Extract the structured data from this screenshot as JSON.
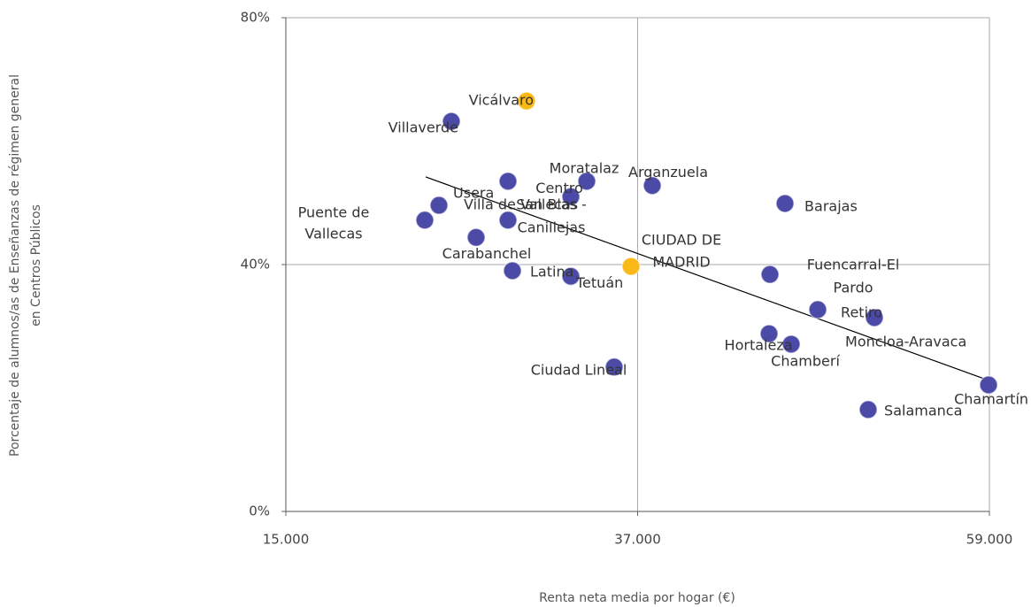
{
  "chart_data": {
    "type": "scatter",
    "xlabel": "Renta neta media por hogar (€)",
    "ylabel": [
      "Porcentaje de alumnos/as de Enseñanzas de régimen general",
      "en Centros Públicos"
    ],
    "labels": [
      [
        "Vicálvaro"
      ],
      [
        "Villaverde"
      ],
      [
        "Moratalaz"
      ],
      [
        "Arganzuela"
      ],
      [
        "Centro"
      ],
      [
        "Villa de Vallecas"
      ],
      [
        "Usera"
      ],
      [
        "Puente de",
        "Vallecas"
      ],
      [
        "San Blas -",
        "Canillejas"
      ],
      [
        "Carabanchel"
      ],
      [
        "Latina"
      ],
      [
        "Tetuán"
      ],
      [
        "CIUDAD DE",
        "MADRID"
      ],
      [
        "Ciudad Lineal"
      ],
      [
        "Barajas"
      ],
      [
        "Fuencarral-El",
        "Pardo"
      ],
      [
        "Retiro"
      ],
      [
        "Moncloa-Aravaca"
      ],
      [
        "Hortaleza"
      ],
      [
        "Chamberí"
      ],
      [
        "Salamanca"
      ],
      [
        "Chamartín"
      ]
    ],
    "x": [
      30055,
      25350,
      33819,
      37915,
      32822,
      28893,
      24576,
      23690,
      28893,
      26900,
      29170,
      32822,
      36587,
      35535,
      46217,
      45276,
      51808,
      48266,
      45221,
      46605,
      51420,
      58948
    ],
    "y": [
      66.5,
      63.2,
      53.5,
      52.8,
      51.0,
      53.5,
      49.6,
      47.2,
      47.2,
      44.4,
      39.0,
      38.1,
      39.7,
      23.4,
      49.9,
      38.4,
      31.4,
      32.7,
      28.8,
      27.1,
      16.5,
      20.5
    ],
    "colors": [
      "#fbb917",
      "#4b4aa6",
      "#4b4aa6",
      "#4b4aa6",
      "#4b4aa6",
      "#4b4aa6",
      "#4b4aa6",
      "#4b4aa6",
      "#4b4aa6",
      "#4b4aa6",
      "#4b4aa6",
      "#4b4aa6",
      "#fbb917",
      "#4b4aa6",
      "#4b4aa6",
      "#4b4aa6",
      "#4b4aa6",
      "#4b4aa6",
      "#4b4aa6",
      "#4b4aa6",
      "#4b4aa6",
      "#4b4aa6"
    ],
    "trendline": {
      "x": [
        23745,
        59000
      ],
      "y": [
        54.2,
        21.2
      ],
      "color": "#000000"
    },
    "xlim": [
      15000,
      59000
    ],
    "ylim": [
      0,
      80
    ],
    "xticks": [
      {
        "value": 15000,
        "label": "15.000"
      },
      {
        "value": 37000,
        "label": "37.000"
      },
      {
        "value": 59000,
        "label": "59.000"
      }
    ],
    "yticks": [
      {
        "value": 0,
        "label": "0%"
      },
      {
        "value": 40,
        "label": "40%"
      },
      {
        "value": 80,
        "label": "80%"
      }
    ],
    "grid": true
  }
}
